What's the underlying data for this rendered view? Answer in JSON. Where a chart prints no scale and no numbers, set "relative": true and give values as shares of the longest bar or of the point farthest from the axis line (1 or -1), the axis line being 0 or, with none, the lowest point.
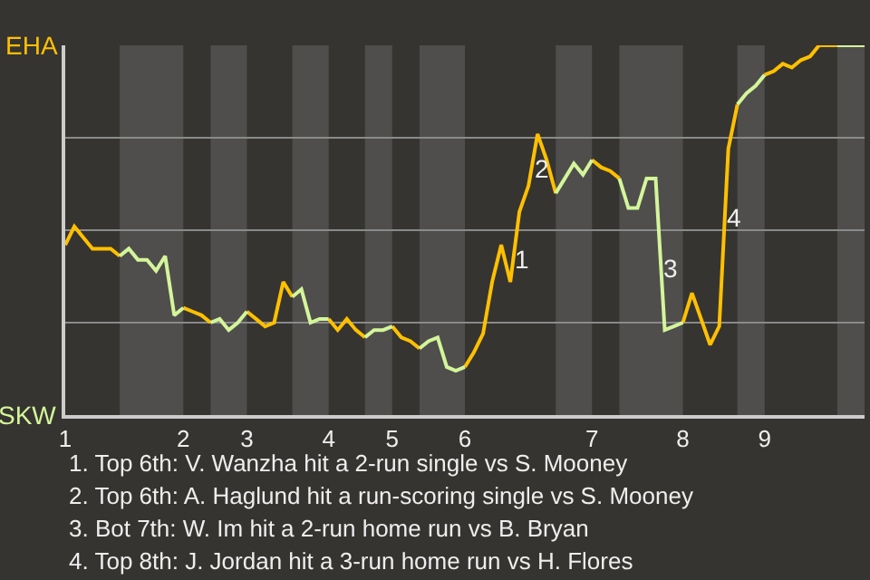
{
  "chart_data": {
    "type": "line",
    "relative": true,
    "categories": [
      "1",
      null,
      null,
      null,
      null,
      null,
      null,
      null,
      null,
      null,
      null,
      null,
      null,
      "2",
      null,
      null,
      null,
      null,
      null,
      null,
      "3",
      null,
      null,
      null,
      null,
      null,
      null,
      null,
      null,
      "4",
      null,
      null,
      null,
      null,
      null,
      null,
      "5",
      null,
      null,
      null,
      null,
      null,
      null,
      null,
      "6",
      null,
      null,
      null,
      null,
      null,
      null,
      null,
      null,
      null,
      null,
      null,
      null,
      null,
      "7",
      null,
      null,
      null,
      null,
      null,
      null,
      null,
      null,
      null,
      "8",
      null,
      null,
      null,
      null,
      null,
      null,
      null,
      null,
      "9",
      null,
      null,
      null,
      null,
      null,
      null,
      null,
      null,
      null,
      null,
      null
    ],
    "grid": "y",
    "legend": false,
    "marker": "none",
    "line_style": "solid",
    "series": [
      {
        "name": "EHA",
        "color": "#ffc000",
        "values": [
          0.46,
          0.51,
          0.48,
          0.45,
          0.45,
          0.45,
          0.43,
          null,
          null,
          null,
          null,
          null,
          null,
          0.29,
          0.28,
          0.27,
          0.25,
          null,
          null,
          null,
          0.28,
          0.26,
          0.24,
          0.25,
          0.36,
          0.32,
          null,
          null,
          null,
          0.26,
          0.23,
          0.26,
          0.23,
          0.21,
          null,
          null,
          0.24,
          0.21,
          0.2,
          0.18,
          null,
          null,
          null,
          null,
          0.13,
          0.17,
          0.22,
          0.36,
          0.46,
          0.36,
          0.55,
          0.62,
          0.76,
          0.69,
          0.6,
          null,
          null,
          null,
          0.69,
          0.67,
          0.66,
          0.64,
          null,
          null,
          null,
          null,
          null,
          null,
          0.25,
          0.33,
          0.26,
          0.19,
          0.24,
          0.72,
          0.84,
          null,
          null,
          0.92,
          0.93,
          0.95,
          0.94,
          0.96,
          0.97,
          1.0,
          1.0,
          1.0,
          null,
          null,
          null
        ]
      },
      {
        "name": "SKW",
        "color": "#d4f59a",
        "values": [
          null,
          null,
          null,
          null,
          null,
          null,
          0.43,
          0.45,
          0.42,
          0.42,
          0.39,
          0.43,
          0.27,
          0.29,
          null,
          null,
          0.25,
          0.26,
          0.23,
          0.25,
          0.28,
          null,
          null,
          null,
          null,
          0.32,
          0.34,
          0.25,
          0.26,
          0.26,
          null,
          null,
          null,
          0.21,
          0.23,
          0.23,
          0.24,
          null,
          null,
          0.18,
          0.2,
          0.21,
          0.13,
          0.12,
          0.13,
          null,
          null,
          null,
          null,
          null,
          null,
          null,
          null,
          null,
          0.6,
          0.64,
          0.68,
          0.65,
          0.69,
          null,
          null,
          0.64,
          0.56,
          0.56,
          0.64,
          0.64,
          0.23,
          0.24,
          0.25,
          null,
          null,
          null,
          null,
          null,
          0.84,
          0.87,
          0.89,
          0.92,
          null,
          null,
          null,
          null,
          null,
          null,
          null,
          1.0,
          1.0,
          1.0,
          1.0
        ]
      }
    ],
    "annotations": [
      "1",
      "2",
      "3",
      "4",
      "1. Top 6th: V. Wanzha hit a 2-run single vs S. Mooney",
      "2. Top 6th: A. Haglund hit a run-scoring single vs S. Mooney",
      "3. Bot 7th: W. Im hit a 2-run home run vs B. Bryan",
      "4. Top 8th: J. Jordan hit a 3-run home run vs H. Flores"
    ]
  }
}
